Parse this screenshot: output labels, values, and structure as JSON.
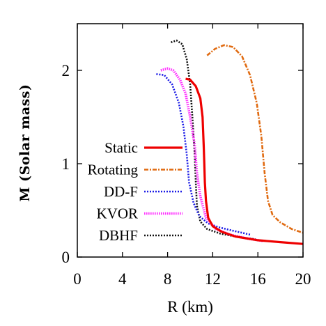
{
  "chart_data": {
    "type": "line",
    "xlabel": "R (km)",
    "ylabel": "M (Solar mass)",
    "xlim": [
      0,
      20
    ],
    "ylim": [
      0,
      2.5
    ],
    "x_ticks": [
      "0",
      "4",
      "8",
      "12",
      "16",
      "20"
    ],
    "y_ticks": [
      "0",
      "1",
      "2"
    ],
    "legend_position": "left",
    "grid": false,
    "series": [
      {
        "name": "Static",
        "color": "#ee0000",
        "style": "solid",
        "points": [
          [
            9.6,
            1.91
          ],
          [
            10.0,
            1.9
          ],
          [
            10.5,
            1.83
          ],
          [
            10.9,
            1.7
          ],
          [
            11.1,
            1.5
          ],
          [
            11.2,
            1.2
          ],
          [
            11.25,
            1.0
          ],
          [
            11.3,
            0.8
          ],
          [
            11.4,
            0.6
          ],
          [
            11.6,
            0.42
          ],
          [
            12.0,
            0.33
          ],
          [
            12.8,
            0.27
          ],
          [
            14,
            0.22
          ],
          [
            16,
            0.18
          ],
          [
            18,
            0.16
          ],
          [
            20,
            0.14
          ]
        ]
      },
      {
        "name": "Rotating",
        "color": "#e06a10",
        "style": "dashdot",
        "points": [
          [
            11.5,
            2.16
          ],
          [
            12.2,
            2.23
          ],
          [
            13,
            2.27
          ],
          [
            13.8,
            2.25
          ],
          [
            14.6,
            2.15
          ],
          [
            15.3,
            1.95
          ],
          [
            15.9,
            1.65
          ],
          [
            16.3,
            1.3
          ],
          [
            16.6,
            0.9
          ],
          [
            16.9,
            0.6
          ],
          [
            17.3,
            0.45
          ],
          [
            18.0,
            0.37
          ],
          [
            19.0,
            0.3
          ],
          [
            20,
            0.26
          ]
        ]
      },
      {
        "name": "DD-F",
        "color": "#1a1ae6",
        "style": "dotted",
        "points": [
          [
            7.0,
            1.96
          ],
          [
            7.7,
            1.95
          ],
          [
            8.4,
            1.85
          ],
          [
            9.0,
            1.65
          ],
          [
            9.4,
            1.4
          ],
          [
            9.7,
            1.1
          ],
          [
            9.9,
            0.8
          ],
          [
            10.3,
            0.58
          ],
          [
            10.8,
            0.44
          ],
          [
            11.6,
            0.36
          ],
          [
            12.5,
            0.32
          ],
          [
            13.5,
            0.29
          ],
          [
            15.3,
            0.24
          ]
        ]
      },
      {
        "name": "KVOR",
        "color": "#ff30ff",
        "style": "dotted-thick",
        "points": [
          [
            7.4,
            2.0
          ],
          [
            8.0,
            2.02
          ],
          [
            8.5,
            2.0
          ],
          [
            9.1,
            1.9
          ],
          [
            9.6,
            1.75
          ],
          [
            10.0,
            1.5
          ],
          [
            10.4,
            1.2
          ],
          [
            10.6,
            0.9
          ],
          [
            10.9,
            0.65
          ],
          [
            11.4,
            0.42
          ],
          [
            12.3,
            0.3
          ],
          [
            13.5,
            0.24
          ],
          [
            15,
            0.2
          ],
          [
            16.5,
            0.17
          ]
        ]
      },
      {
        "name": "DBHF",
        "color": "#111111",
        "style": "dotted",
        "points": [
          [
            8.3,
            2.3
          ],
          [
            8.8,
            2.32
          ],
          [
            9.3,
            2.28
          ],
          [
            9.7,
            2.12
          ],
          [
            10.0,
            1.85
          ],
          [
            10.2,
            1.5
          ],
          [
            10.4,
            1.1
          ],
          [
            10.5,
            0.8
          ],
          [
            10.6,
            0.55
          ],
          [
            10.9,
            0.38
          ],
          [
            11.5,
            0.3
          ],
          [
            12.7,
            0.25
          ],
          [
            14,
            0.22
          ],
          [
            15.8,
            0.19
          ]
        ]
      }
    ]
  }
}
